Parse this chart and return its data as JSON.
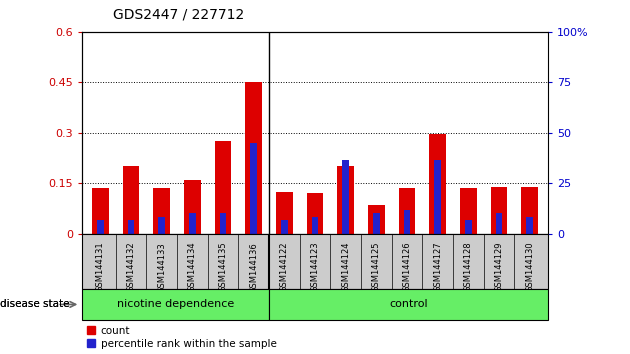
{
  "title": "GDS2447 / 227712",
  "samples": [
    "GSM144131",
    "GSM144132",
    "GSM144133",
    "GSM144134",
    "GSM144135",
    "GSM144136",
    "GSM144122",
    "GSM144123",
    "GSM144124",
    "GSM144125",
    "GSM144126",
    "GSM144127",
    "GSM144128",
    "GSM144129",
    "GSM144130"
  ],
  "count_values": [
    0.135,
    0.2,
    0.135,
    0.16,
    0.275,
    0.45,
    0.125,
    0.12,
    0.2,
    0.085,
    0.135,
    0.295,
    0.135,
    0.14,
    0.14
  ],
  "percentile_values": [
    0.04,
    0.04,
    0.05,
    0.06,
    0.06,
    0.27,
    0.04,
    0.05,
    0.22,
    0.06,
    0.07,
    0.22,
    0.04,
    0.06,
    0.05
  ],
  "group_boundary": 6,
  "ylim_left": [
    0,
    0.6
  ],
  "ylim_right": [
    0,
    100
  ],
  "yticks_left": [
    0,
    0.15,
    0.3,
    0.45,
    0.6
  ],
  "yticks_right": [
    0,
    25,
    50,
    75,
    100
  ],
  "ytick_labels_left": [
    "0",
    "0.15",
    "0.3",
    "0.45",
    "0.6"
  ],
  "ytick_labels_right": [
    "0",
    "25",
    "50",
    "75",
    "100%"
  ],
  "bar_color_red": "#DD0000",
  "bar_color_blue": "#2222CC",
  "bar_width": 0.55,
  "title_fontsize": 10,
  "disease_label": "disease state",
  "group1_label": "nicotine dependence",
  "group2_label": "control",
  "legend_count": "count",
  "legend_percentile": "percentile rank within the sample",
  "tick_color_left": "#CC0000",
  "tick_color_right": "#0000CC",
  "green_color": "#66EE66",
  "gray_color": "#CCCCCC"
}
